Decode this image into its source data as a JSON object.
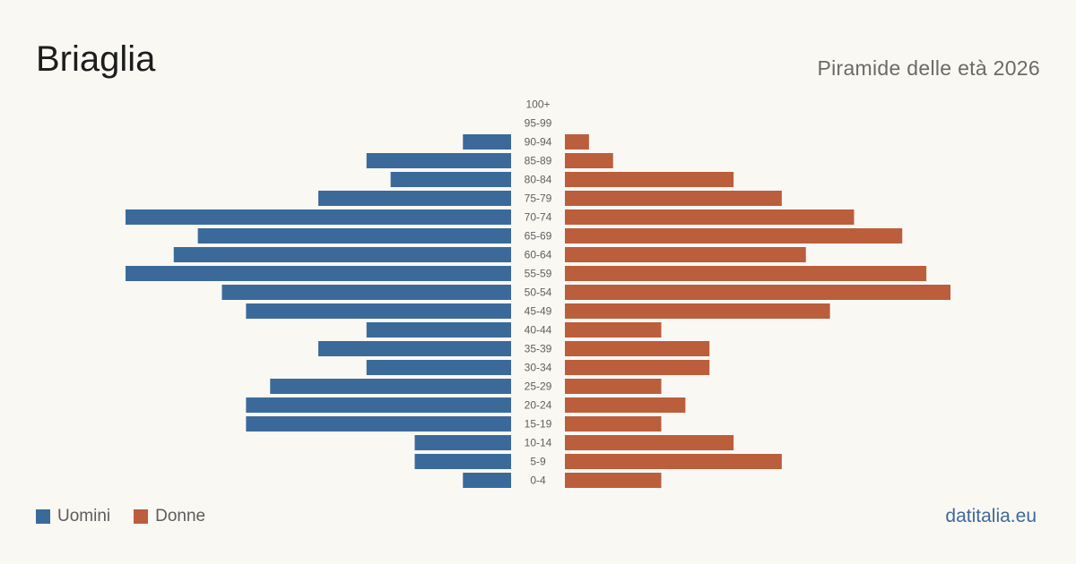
{
  "header": {
    "title": "Briaglia",
    "subtitle": "Piramide delle età 2026"
  },
  "legend": {
    "male_label": "Uomini",
    "female_label": "Donne"
  },
  "brand": {
    "label": "datitalia.eu"
  },
  "colors": {
    "male": "#3b6a9a",
    "female": "#bb5e3c",
    "background": "#faf8f3"
  },
  "chart_data": {
    "type": "bar",
    "orientation": "horizontal-pyramid",
    "title": "Briaglia",
    "subtitle": "Piramide delle età 2026",
    "categories": [
      "100+",
      "95-99",
      "90-94",
      "85-89",
      "80-84",
      "75-79",
      "70-74",
      "65-69",
      "60-64",
      "55-59",
      "50-54",
      "45-49",
      "40-44",
      "35-39",
      "30-34",
      "25-29",
      "20-24",
      "15-19",
      "10-14",
      "5-9",
      "0-4"
    ],
    "series": [
      {
        "name": "Uomini",
        "values": [
          0,
          0,
          2,
          6,
          5,
          8,
          16,
          13,
          14,
          16,
          12,
          11,
          6,
          8,
          6,
          10,
          11,
          11,
          4,
          4,
          2
        ]
      },
      {
        "name": "Donne",
        "values": [
          0,
          0,
          1,
          2,
          7,
          9,
          12,
          14,
          10,
          15,
          16,
          11,
          4,
          6,
          6,
          4,
          5,
          4,
          7,
          9,
          4
        ]
      }
    ],
    "xlim": [
      0,
      16
    ],
    "grid": false,
    "legend_position": "bottom-left"
  }
}
